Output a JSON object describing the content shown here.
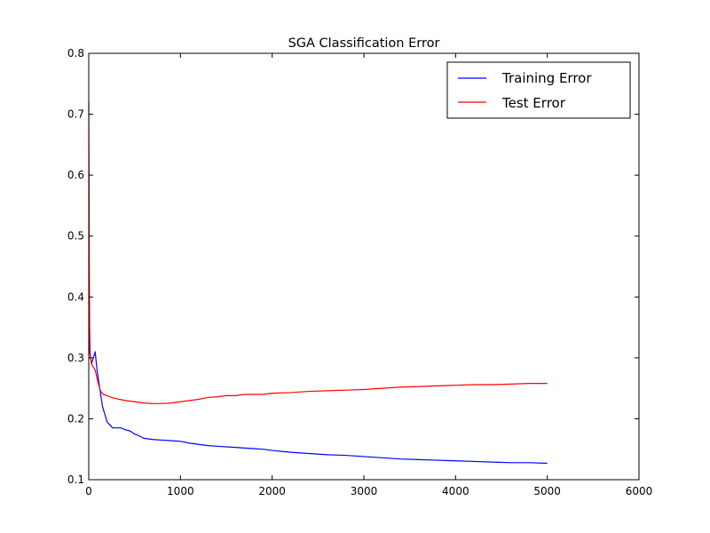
{
  "chart_data": {
    "type": "line",
    "title": "SGA Classification Error",
    "xlabel": "",
    "ylabel": "",
    "xlim": [
      0,
      6000
    ],
    "ylim": [
      0.1,
      0.8
    ],
    "x_ticks": [
      0,
      1000,
      2000,
      3000,
      4000,
      5000,
      6000
    ],
    "x_tick_labels": [
      "0",
      "1000",
      "2000",
      "3000",
      "4000",
      "5000",
      "6000"
    ],
    "y_ticks": [
      0.1,
      0.2,
      0.3,
      0.4,
      0.5,
      0.6,
      0.7,
      0.8
    ],
    "y_tick_labels": [
      "0.1",
      "0.2",
      "0.3",
      "0.4",
      "0.5",
      "0.6",
      "0.7",
      "0.8"
    ],
    "grid": false,
    "legend_position": "top-right",
    "series": [
      {
        "name": "Training Error",
        "color": "#0000ff",
        "x": [
          0,
          5,
          10,
          20,
          30,
          50,
          70,
          90,
          110,
          130,
          150,
          170,
          200,
          230,
          260,
          300,
          350,
          400,
          450,
          500,
          550,
          600,
          700,
          800,
          900,
          1000,
          1100,
          1200,
          1300,
          1400,
          1500,
          1600,
          1700,
          1800,
          1900,
          2000,
          2200,
          2400,
          2600,
          2800,
          3000,
          3200,
          3400,
          3600,
          3800,
          4000,
          4200,
          4400,
          4600,
          4800,
          5000
        ],
        "y": [
          0.35,
          0.33,
          0.31,
          0.3,
          0.29,
          0.3,
          0.31,
          0.28,
          0.26,
          0.24,
          0.22,
          0.21,
          0.195,
          0.19,
          0.185,
          0.185,
          0.185,
          0.182,
          0.18,
          0.175,
          0.172,
          0.168,
          0.166,
          0.165,
          0.164,
          0.163,
          0.16,
          0.158,
          0.156,
          0.155,
          0.154,
          0.153,
          0.152,
          0.151,
          0.15,
          0.148,
          0.145,
          0.143,
          0.141,
          0.14,
          0.138,
          0.136,
          0.134,
          0.133,
          0.132,
          0.131,
          0.13,
          0.129,
          0.128,
          0.128,
          0.127
        ]
      },
      {
        "name": "Test Error",
        "color": "#ff0000",
        "x": [
          0,
          3,
          6,
          10,
          15,
          20,
          30,
          50,
          70,
          100,
          130,
          160,
          200,
          250,
          300,
          400,
          500,
          600,
          700,
          800,
          900,
          1000,
          1100,
          1200,
          1300,
          1400,
          1500,
          1600,
          1700,
          1800,
          1900,
          2000,
          2200,
          2400,
          2600,
          2800,
          3000,
          3200,
          3400,
          3600,
          3800,
          4000,
          4200,
          4400,
          4600,
          4800,
          5000
        ],
        "y": [
          0.72,
          0.6,
          0.45,
          0.35,
          0.31,
          0.3,
          0.29,
          0.285,
          0.28,
          0.26,
          0.245,
          0.24,
          0.238,
          0.235,
          0.233,
          0.23,
          0.228,
          0.226,
          0.225,
          0.225,
          0.226,
          0.228,
          0.23,
          0.232,
          0.235,
          0.236,
          0.238,
          0.238,
          0.24,
          0.24,
          0.24,
          0.242,
          0.243,
          0.245,
          0.246,
          0.247,
          0.248,
          0.25,
          0.252,
          0.253,
          0.254,
          0.255,
          0.256,
          0.256,
          0.257,
          0.258,
          0.258
        ]
      }
    ]
  }
}
